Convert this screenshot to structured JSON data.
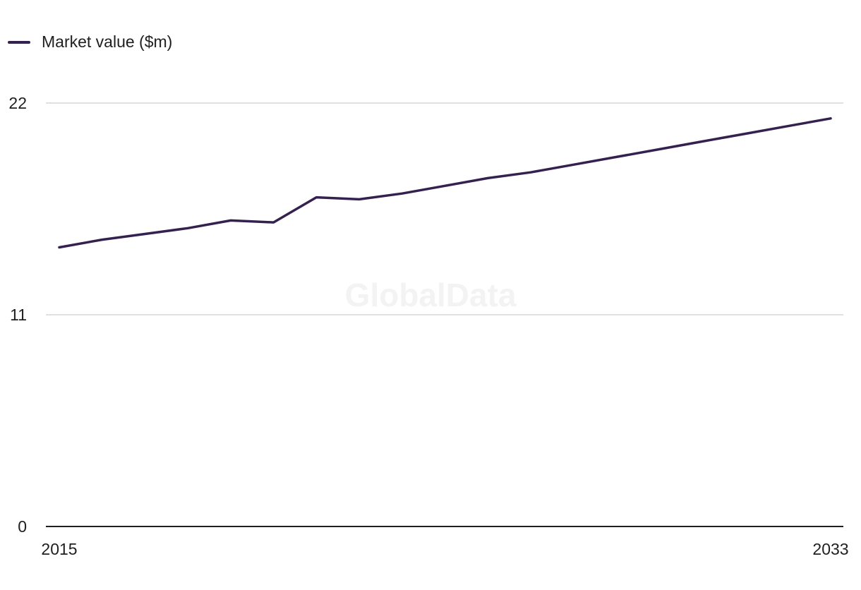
{
  "legend": {
    "label": "Market value ($m)"
  },
  "watermark": "GlobalData",
  "colors": {
    "series": "#35214f",
    "grid": "#d6d6d6",
    "axis": "#1f1f1f"
  },
  "chart_data": {
    "type": "line",
    "x": [
      2015,
      2016,
      2017,
      2018,
      2019,
      2020,
      2021,
      2022,
      2023,
      2024,
      2025,
      2026,
      2027,
      2028,
      2029,
      2030,
      2031,
      2032,
      2033
    ],
    "series": [
      {
        "name": "Market value ($m)",
        "values": [
          14.5,
          14.9,
          15.2,
          15.5,
          15.9,
          15.8,
          17.1,
          17.0,
          17.3,
          17.7,
          18.1,
          18.4,
          18.8,
          19.2,
          19.6,
          20.0,
          20.4,
          20.8,
          21.2
        ]
      }
    ],
    "xticks": [
      "2015",
      "2033"
    ],
    "yticks": [
      0,
      11,
      22
    ],
    "ylim": [
      0,
      22
    ],
    "xlabel": "",
    "ylabel": "",
    "grid": true,
    "legend_position": "top-left"
  }
}
